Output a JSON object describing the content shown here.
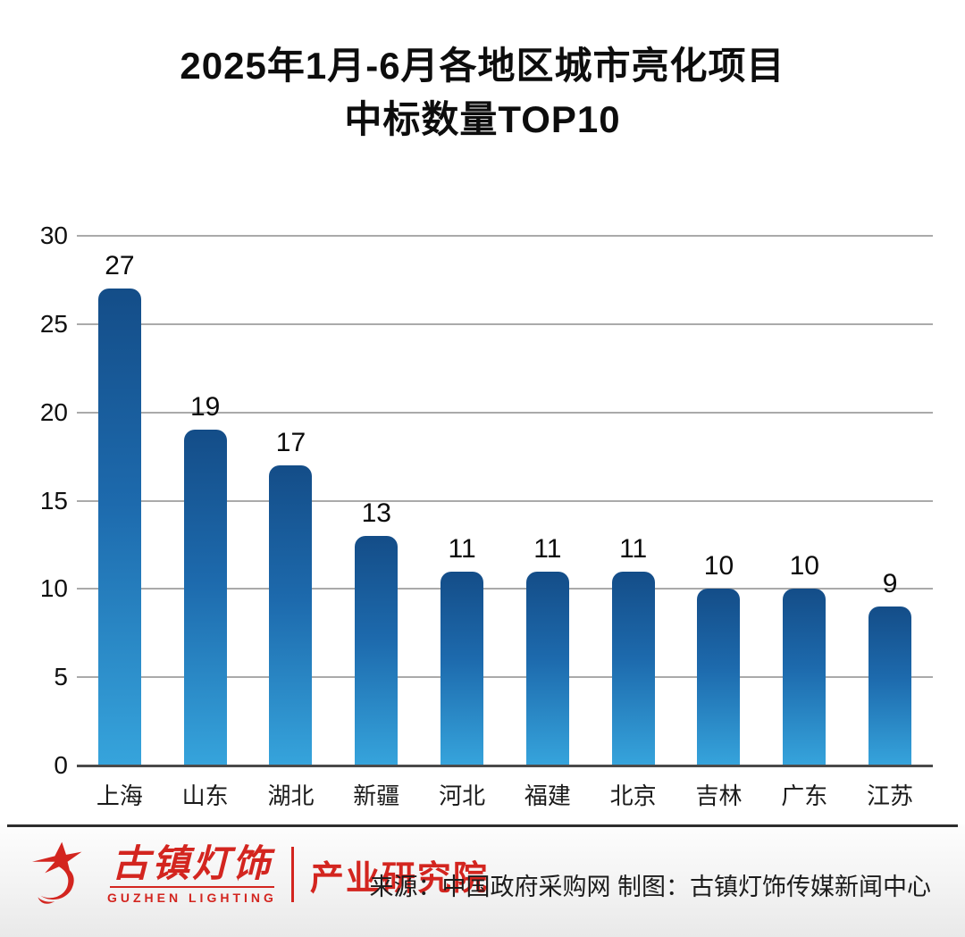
{
  "title": {
    "line1": "2025年1月-6月各地区城市亮化项目",
    "line2": "中标数量TOP10"
  },
  "chart_data": {
    "type": "bar",
    "title": "2025年1月-6月各地区城市亮化项目 中标数量TOP10",
    "categories": [
      "上海",
      "山东",
      "湖北",
      "新疆",
      "河北",
      "福建",
      "北京",
      "吉林",
      "广东",
      "江苏"
    ],
    "values": [
      27,
      19,
      17,
      13,
      11,
      11,
      11,
      10,
      10,
      9
    ],
    "xlabel": "",
    "ylabel": "",
    "ylim": [
      0,
      30
    ],
    "yticks": [
      0,
      5,
      10,
      15,
      20,
      25,
      30
    ],
    "grid": true,
    "legend": false,
    "bar_gradient_top": "#144d88",
    "bar_gradient_bottom": "#36a4dc",
    "value_labels_shown": true
  },
  "footer": {
    "brand_cn": "古镇灯饰",
    "brand_en": "GUZHEN LIGHTING",
    "department": "产业研究院",
    "source": "来源：中国政府采购网 制图：古镇灯饰传媒新闻中心",
    "brand_color": "#d3251f"
  }
}
